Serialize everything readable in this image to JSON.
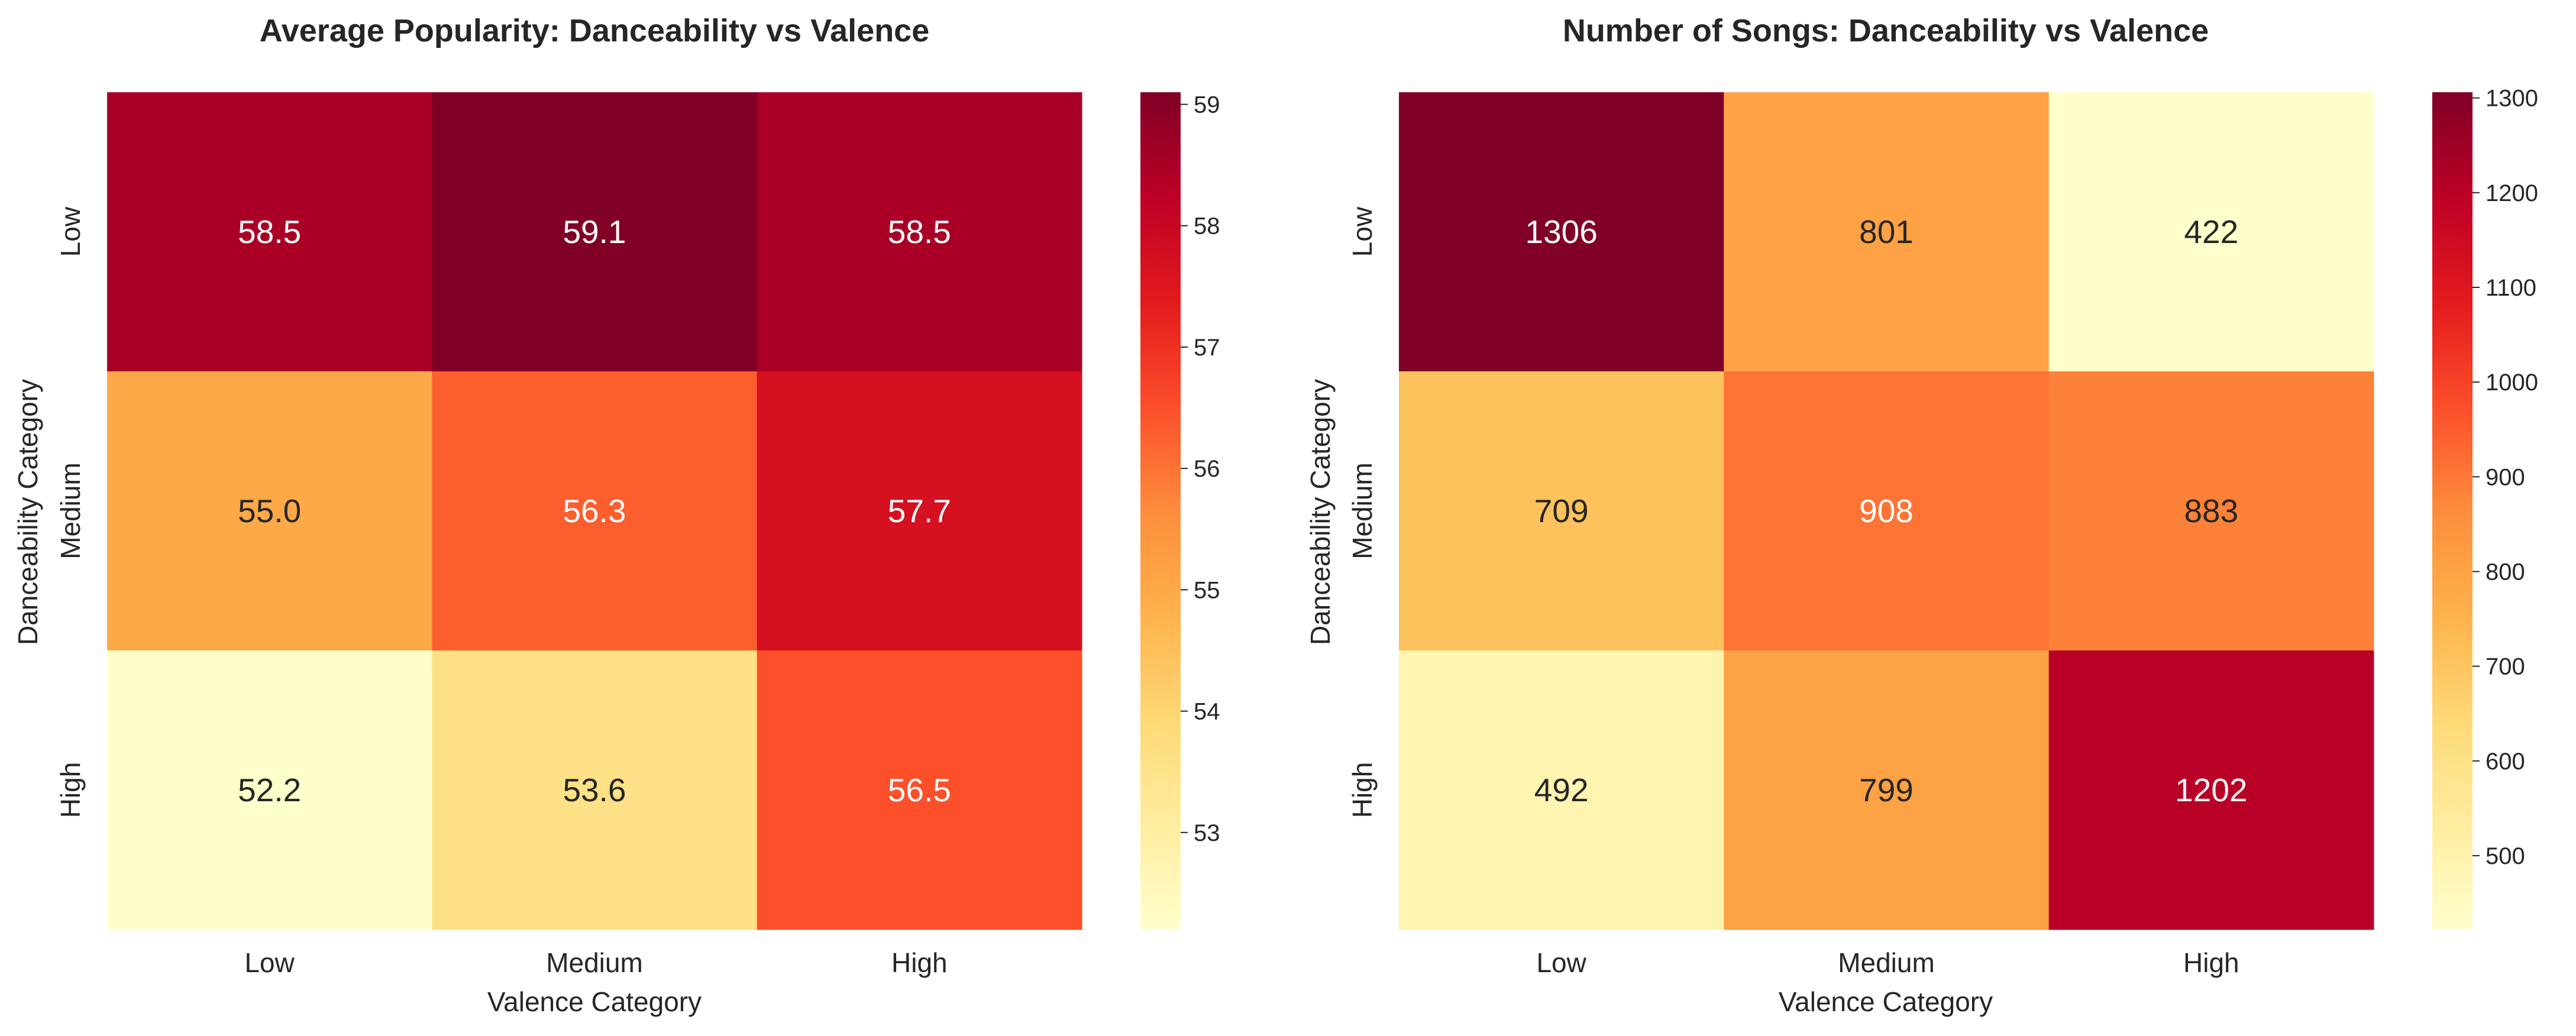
{
  "chart_data": [
    {
      "type": "heatmap",
      "title": "Average Popularity: Danceability vs Valence",
      "xlabel": "Valence Category",
      "ylabel": "Danceability Category",
      "x_categories": [
        "Low",
        "Medium",
        "High"
      ],
      "y_categories": [
        "Low",
        "Medium",
        "High"
      ],
      "values": [
        [
          58.5,
          59.1,
          58.5
        ],
        [
          55.0,
          56.3,
          57.7
        ],
        [
          52.2,
          53.6,
          56.5
        ]
      ],
      "value_labels": [
        [
          "58.5",
          "59.1",
          "58.5"
        ],
        [
          "55.0",
          "56.3",
          "57.7"
        ],
        [
          "52.2",
          "53.6",
          "56.5"
        ]
      ],
      "colorbar": {
        "range": [
          52.2,
          59.1
        ],
        "ticks": [
          53,
          54,
          55,
          56,
          57,
          58,
          59
        ],
        "tick_labels": [
          "53",
          "54",
          "55",
          "56",
          "57",
          "58",
          "59"
        ]
      },
      "colormap": "YlOrRd",
      "grid": false
    },
    {
      "type": "heatmap",
      "title": "Number of Songs: Danceability vs Valence",
      "xlabel": "Valence Category",
      "ylabel": "Danceability Category",
      "x_categories": [
        "Low",
        "Medium",
        "High"
      ],
      "y_categories": [
        "Low",
        "Medium",
        "High"
      ],
      "values": [
        [
          1306,
          801,
          422
        ],
        [
          709,
          908,
          883
        ],
        [
          492,
          799,
          1202
        ]
      ],
      "value_labels": [
        [
          "1306",
          "801",
          "422"
        ],
        [
          "709",
          "908",
          "883"
        ],
        [
          "492",
          "799",
          "1202"
        ]
      ],
      "colorbar": {
        "range": [
          422,
          1306
        ],
        "ticks": [
          500,
          600,
          700,
          800,
          900,
          1000,
          1100,
          1200,
          1300
        ],
        "tick_labels": [
          "500",
          "600",
          "700",
          "800",
          "900",
          "1000",
          "1100",
          "1200",
          "1300"
        ]
      },
      "colormap": "YlOrRd",
      "grid": false
    }
  ]
}
